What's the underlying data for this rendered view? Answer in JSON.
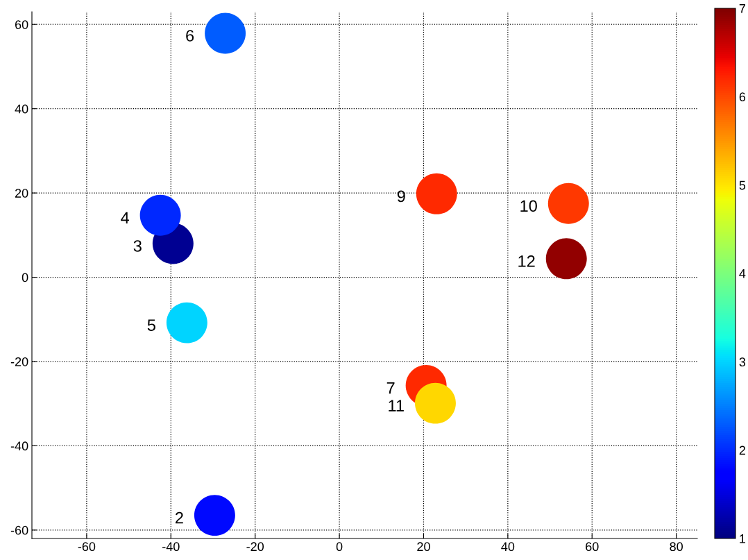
{
  "chart_data": {
    "type": "scatter",
    "x": [
      -29.6,
      -39.5,
      -42.5,
      -36.2,
      -27.1,
      20.6,
      23.1,
      54.4,
      22.8,
      53.9
    ],
    "values": [
      -56.5,
      8.0,
      14.7,
      -10.8,
      57.9,
      -25.7,
      19.8,
      17.5,
      -29.9,
      4.4
    ],
    "cvalues": [
      1.8,
      1.1,
      2.0,
      3.0,
      2.3,
      6.2,
      6.2,
      6.1,
      5.1,
      6.9
    ],
    "annotations": [
      {
        "text": "2",
        "x": -29.6,
        "y": -56.5
      },
      {
        "text": "3",
        "x": -39.5,
        "y": 8.0
      },
      {
        "text": "4",
        "x": -42.5,
        "y": 14.7
      },
      {
        "text": "5",
        "x": -36.2,
        "y": -10.8
      },
      {
        "text": "6",
        "x": -27.1,
        "y": 57.9
      },
      {
        "text": "7",
        "x": 20.6,
        "y": -25.7
      },
      {
        "text": "9",
        "x": 23.1,
        "y": 19.8
      },
      {
        "text": "10",
        "x": 54.4,
        "y": 17.5
      },
      {
        "text": "11",
        "x": 22.8,
        "y": -29.9
      },
      {
        "text": "12",
        "x": 53.9,
        "y": 4.4
      }
    ],
    "xlim": [
      -73,
      85
    ],
    "xticks": [
      -60,
      -40,
      -20,
      0,
      20,
      40,
      60,
      80
    ],
    "ylim": [
      -62,
      63
    ],
    "yticks": [
      -60,
      -40,
      -20,
      0,
      20,
      40,
      60
    ],
    "clim": [
      1,
      7
    ],
    "cticks": [
      1,
      2,
      3,
      4,
      5,
      6,
      7
    ],
    "grid": true,
    "marker": "circle",
    "line_style": "dotted"
  }
}
